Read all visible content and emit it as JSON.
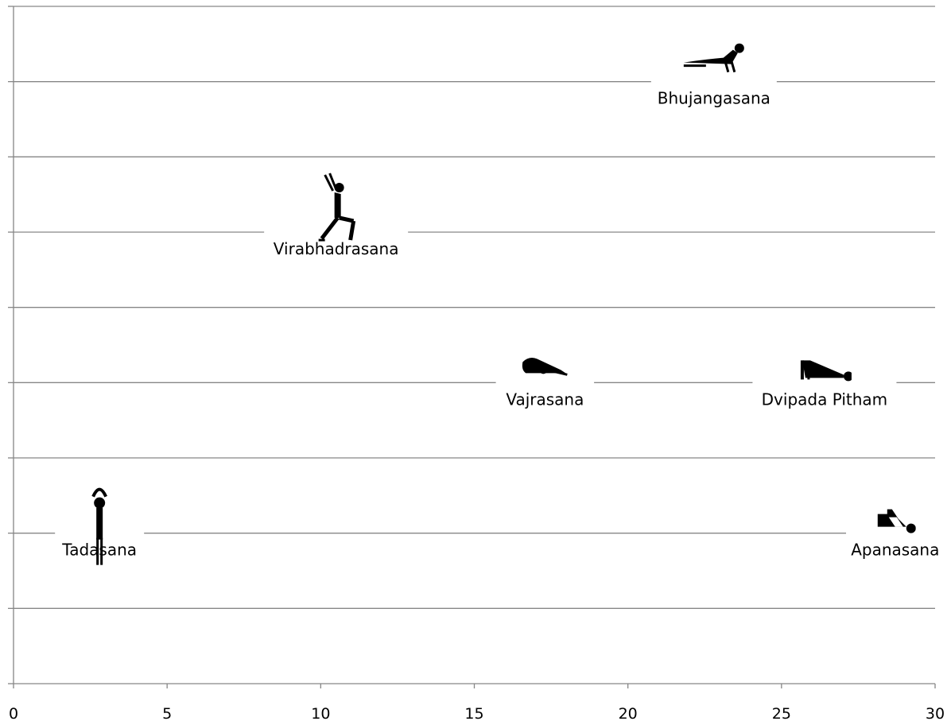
{
  "chart_data": {
    "type": "scatter",
    "title": "",
    "xlabel": "",
    "ylabel": "",
    "xlim": [
      0,
      30
    ],
    "x_ticks": [
      "0",
      "5",
      "10",
      "15",
      "20",
      "25",
      "30"
    ],
    "ylim": [
      0,
      9
    ],
    "grid": "horizontal",
    "points": [
      {
        "label": "Tadasana",
        "x": 2.8,
        "y": 2,
        "icon": "standing-arms-overhead-figure"
      },
      {
        "label": "Virabhadrasana",
        "x": 10.5,
        "y": 6,
        "icon": "warrior-lunge-figure"
      },
      {
        "label": "Vajrasana",
        "x": 17.3,
        "y": 4,
        "icon": "kneeling-forward-bend-figure"
      },
      {
        "label": "Dvipada Pitham",
        "x": 26.4,
        "y": 4,
        "icon": "bridge-pose-figure"
      },
      {
        "label": "Bhujangasana",
        "x": 22.8,
        "y": 8,
        "icon": "cobra-pose-figure"
      },
      {
        "label": "Apanasana",
        "x": 28.7,
        "y": 2,
        "icon": "knees-to-chest-figure"
      }
    ]
  }
}
